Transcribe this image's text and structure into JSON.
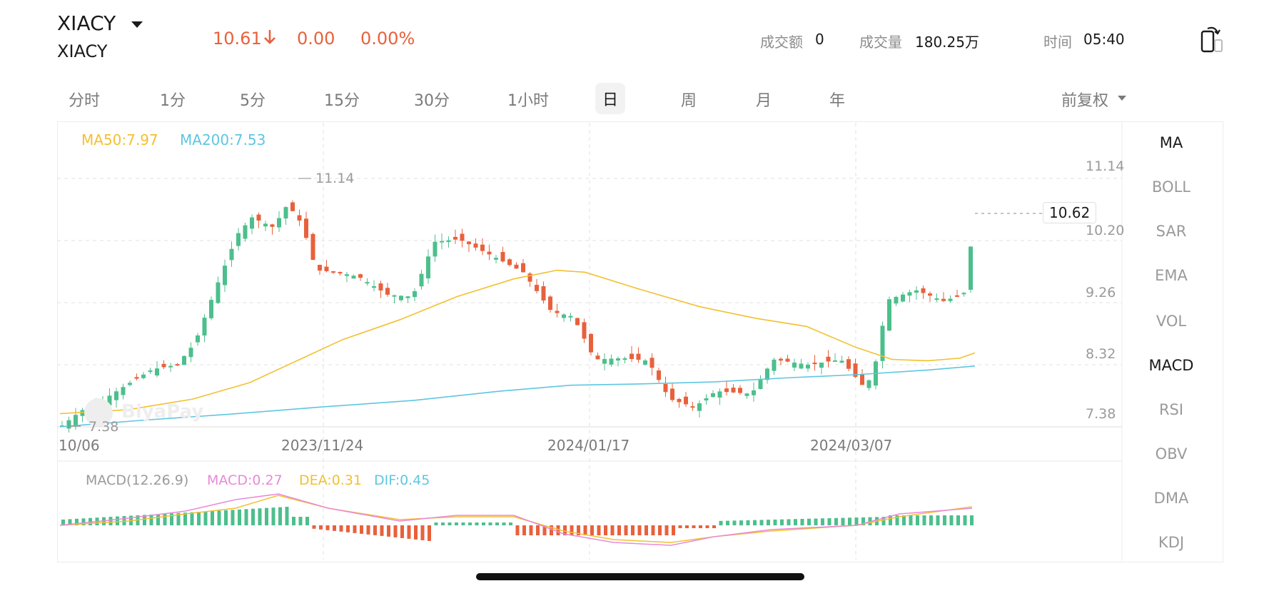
{
  "header": {
    "symbol": "XIACY",
    "subtitle": "XIACY",
    "price": "10.61",
    "change": "0.00",
    "change_pct": "0.00%",
    "turnover_label": "成交额",
    "turnover_value": "0",
    "volume_label": "成交量",
    "volume_value": "180.25万",
    "time_label": "时间",
    "time_value": "05:40",
    "down_color": "#e8613c"
  },
  "tabs": [
    "分时",
    "1分",
    "5分",
    "15分",
    "30分",
    "1小时",
    "日",
    "周",
    "月",
    "年"
  ],
  "active_tab": "日",
  "adjust_label": "前复权",
  "indicators": [
    "MA",
    "BOLL",
    "SAR",
    "EMA",
    "VOL",
    "MACD",
    "RSI",
    "OBV",
    "DMA",
    "KDJ"
  ],
  "active_indicators": [
    "MA",
    "MACD"
  ],
  "legend": {
    "ma50": "MA50:7.97",
    "ma200": "MA200:7.53",
    "ma50_color": "#f2c030",
    "ma200_color": "#5ec6e0"
  },
  "macd_legend": {
    "title": "MACD(12.26.9)",
    "macd": "MACD:0.27",
    "dea": "DEA:0.31",
    "dif": "DIF:0.45",
    "macd_color": "#e88ad8",
    "dea_color": "#f2c030",
    "dif_color": "#5ec6e0"
  },
  "watermark": "BiyaPay",
  "chart_data": {
    "type": "candlestick",
    "y_ticks": [
      "11.14",
      "10.20",
      "9.26",
      "8.32",
      "7.38"
    ],
    "x_ticks": [
      "10/06",
      "2023/11/24",
      "2024/01/17",
      "2024/03/07"
    ],
    "max_label": "11.14",
    "min_label": "7.38",
    "last_price": "10.62",
    "up_color": "#4cbf8c",
    "down_color": "#e8613c"
  }
}
